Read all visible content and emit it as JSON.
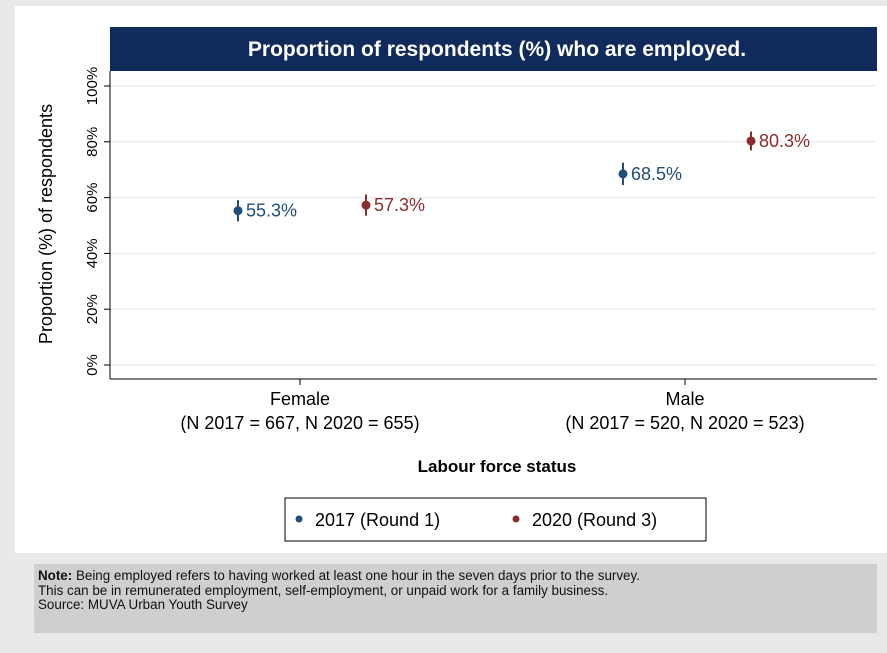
{
  "colors": {
    "background": "#e9e9e9",
    "plot_background": "#ffffff",
    "title_bar": "#102a5c",
    "gridline": "#e8eef2",
    "series_2017": "#1f4e79",
    "series_2020": "#8c2d2d"
  },
  "chart_data": {
    "type": "scatter",
    "title": "Proportion of respondents (%) who are employed.",
    "ylabel": "Proportion (%) of respondents",
    "xlabel": "Labour force status",
    "ylim": [
      0,
      100
    ],
    "yticks": [
      0,
      20,
      40,
      60,
      80,
      100
    ],
    "ytick_labels": [
      "0%",
      "20%",
      "40%",
      "60%",
      "80%",
      "100%"
    ],
    "grid": true,
    "legend_placement": "bottom",
    "categories": [
      {
        "name": "Female",
        "n_label": "(N 2017 = 667, N 2020 = 655)"
      },
      {
        "name": "Male",
        "n_label": "(N 2017 = 520, N 2020 = 523)"
      }
    ],
    "series": [
      {
        "name": "2017 (Round 1)",
        "color": "#1f4e79",
        "values": [
          55.3,
          68.5
        ],
        "ci_low": [
          51.5,
          64.5
        ],
        "ci_high": [
          59.1,
          72.5
        ],
        "labels": [
          "55.3%",
          "68.5%"
        ]
      },
      {
        "name": "2020 (Round 3)",
        "color": "#8c2d2d",
        "values": [
          57.3,
          80.3
        ],
        "ci_low": [
          53.5,
          76.9
        ],
        "ci_high": [
          61.1,
          83.7
        ],
        "labels": [
          "57.3%",
          "80.3%"
        ]
      }
    ]
  },
  "note": {
    "label": "Note:",
    "text": "Being employed refers to having worked at least one hour in the seven days prior to the survey.",
    "line2": "This can be in remunerated employment, self-employment, or unpaid work for a family business.",
    "source": "Source: MUVA Urban Youth Survey"
  }
}
